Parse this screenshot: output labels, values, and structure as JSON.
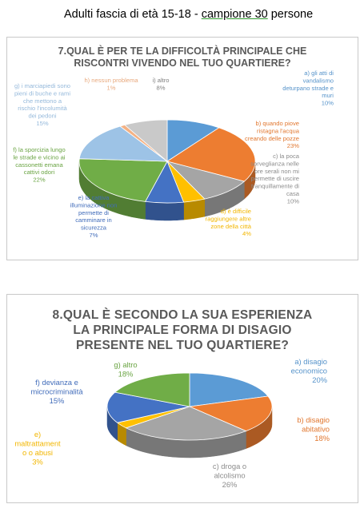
{
  "header": {
    "prefix": "Adulti fascia di età 15-18 - ",
    "highlight": "campione 30",
    "suffix": " persone"
  },
  "chart_data": [
    {
      "type": "pie",
      "title_lines": [
        "7.QUAL È PER TE LA DIFFICOLTÀ PRINCIPALE CHE",
        "RISCONTRI VIVENDO NEL TUO QUARTIERE?"
      ],
      "slices": [
        {
          "label_lines": [
            "a) gli atti di",
            "vandalismo",
            "deturpano strade e",
            "muri"
          ],
          "pct": "10%",
          "value": 10,
          "color": "#5b9bd5"
        },
        {
          "label_lines": [
            "b) quando piove",
            "ristagna l'acqua",
            "creando delle pozze"
          ],
          "pct": "23%",
          "value": 23,
          "color": "#ed7d31"
        },
        {
          "label_lines": [
            "c) la poca",
            "sorveglianza nelle",
            "ore serali non mi",
            "permette di uscire",
            "tranquillamente di",
            "casa"
          ],
          "pct": "10%",
          "value": 10,
          "color": "#a5a5a5"
        },
        {
          "label_lines": [
            "d) è difficile",
            "raggiungere altre",
            "zone della città"
          ],
          "pct": "4%",
          "value": 4,
          "color": "#ffc000"
        },
        {
          "label_lines": [
            "e) la cattiva",
            "illuminazione non",
            "permette di",
            "camminare in",
            "sicurezza"
          ],
          "pct": "7%",
          "value": 7,
          "color": "#4472c4"
        },
        {
          "label_lines": [
            "f) la sporcizia lungo",
            "le strade e vicino ai",
            "cassonetti emana",
            "cattivi odori"
          ],
          "pct": "22%",
          "value": 22,
          "color": "#70ad47"
        },
        {
          "label_lines": [
            "g) i marciapiedi sono",
            "pieni di buche e rami",
            "che mettono a",
            "rischio l'incolumità",
            "dei pedoni"
          ],
          "pct": "15%",
          "value": 15,
          "color": "#9dc3e6"
        },
        {
          "label_lines": [
            "h) nessun problema"
          ],
          "pct": "1%",
          "value": 1,
          "color": "#f4b183"
        },
        {
          "label_lines": [
            "i) altro"
          ],
          "pct": "8%",
          "value": 8,
          "color": "#c9c9c9"
        }
      ]
    },
    {
      "type": "pie",
      "title_lines": [
        "8.QUAL È SECONDO LA SUA ESPERIENZA",
        "LA PRINCIPALE FORMA DI DISAGIO",
        "PRESENTE NEL TUO QUARTIERE?"
      ],
      "slices": [
        {
          "label_lines": [
            "a) disagio",
            "economico"
          ],
          "pct": "20%",
          "value": 20,
          "color": "#5b9bd5"
        },
        {
          "label_lines": [
            "b) disagio",
            "abitativo"
          ],
          "pct": "18%",
          "value": 18,
          "color": "#ed7d31"
        },
        {
          "label_lines": [
            "c) droga o",
            "alcolismo"
          ],
          "pct": "26%",
          "value": 26,
          "color": "#a5a5a5"
        },
        {
          "label_lines": [
            "e)",
            "maltrattament",
            "o o abusi"
          ],
          "pct": "3%",
          "value": 3,
          "color": "#ffc000"
        },
        {
          "label_lines": [
            "f) devianza e",
            "microcriminalità"
          ],
          "pct": "15%",
          "value": 15,
          "color": "#4472c4"
        },
        {
          "label_lines": [
            "g) altro"
          ],
          "pct": "18%",
          "value": 18,
          "color": "#70ad47"
        }
      ]
    }
  ]
}
